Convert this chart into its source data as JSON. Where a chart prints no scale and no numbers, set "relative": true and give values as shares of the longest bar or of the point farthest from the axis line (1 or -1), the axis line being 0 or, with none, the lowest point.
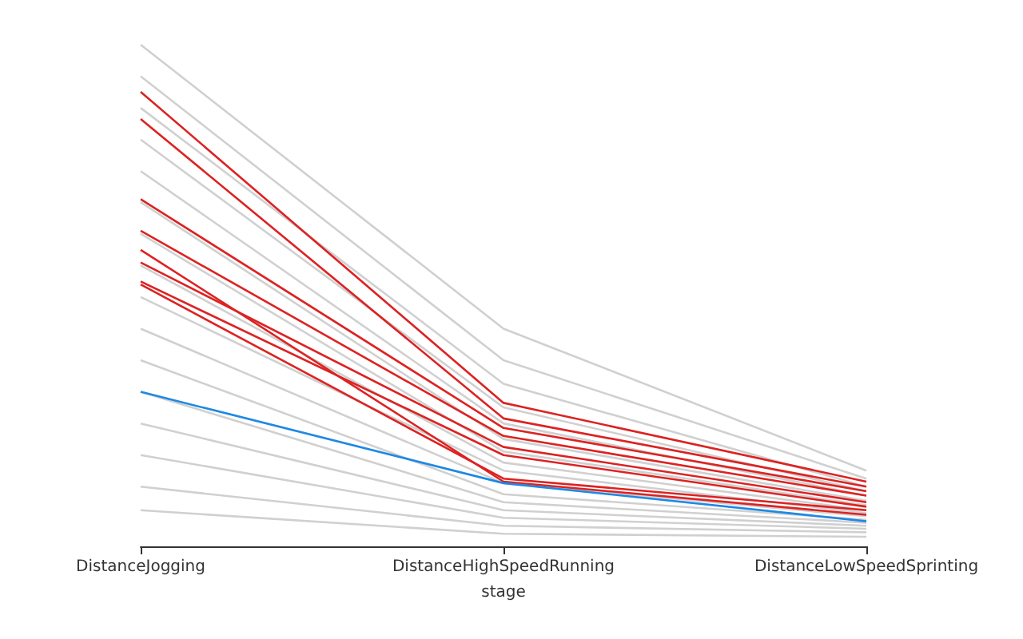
{
  "chart_data": {
    "type": "line",
    "relative": true,
    "xlabel": "stage",
    "categories": [
      "DistanceJogging",
      "DistanceHighSpeedRunning",
      "DistanceLowSpeedSprinting"
    ],
    "marker": "none",
    "series": [
      {
        "color": "#d0d0d0",
        "values": [
          1.0,
          0.434,
          0.151
        ]
      },
      {
        "color": "#d0d0d0",
        "values": [
          0.937,
          0.371,
          0.135
        ]
      },
      {
        "color": "#d0d0d0",
        "values": [
          0.874,
          0.324,
          0.119
        ]
      },
      {
        "color": "#d0d0d0",
        "values": [
          0.811,
          0.277,
          0.11
        ]
      },
      {
        "color": "#d0d0d0",
        "values": [
          0.748,
          0.245,
          0.101
        ]
      },
      {
        "color": "#d0d0d0",
        "values": [
          0.686,
          0.214,
          0.091
        ]
      },
      {
        "color": "#d0d0d0",
        "values": [
          0.623,
          0.189,
          0.082
        ]
      },
      {
        "color": "#d0d0d0",
        "values": [
          0.56,
          0.167,
          0.072
        ]
      },
      {
        "color": "#d0d0d0",
        "values": [
          0.497,
          0.151,
          0.066
        ]
      },
      {
        "color": "#d0d0d0",
        "values": [
          0.434,
          0.126,
          0.06
        ]
      },
      {
        "color": "#d0d0d0",
        "values": [
          0.371,
          0.104,
          0.053
        ]
      },
      {
        "color": "#d0d0d0",
        "values": [
          0.308,
          0.088,
          0.047
        ]
      },
      {
        "color": "#d0d0d0",
        "values": [
          0.245,
          0.072,
          0.041
        ]
      },
      {
        "color": "#d0d0d0",
        "values": [
          0.182,
          0.057,
          0.035
        ]
      },
      {
        "color": "#d0d0d0",
        "values": [
          0.119,
          0.041,
          0.028
        ]
      },
      {
        "color": "#d0d0d0",
        "values": [
          0.072,
          0.025,
          0.019
        ]
      },
      {
        "color": "#dd2222",
        "values": [
          0.906,
          0.286,
          0.129
        ]
      },
      {
        "color": "#dd2222",
        "values": [
          0.852,
          0.255,
          0.119
        ]
      },
      {
        "color": "#dd2222",
        "values": [
          0.692,
          0.236,
          0.11
        ]
      },
      {
        "color": "#dd2222",
        "values": [
          0.629,
          0.22,
          0.101
        ]
      },
      {
        "color": "#dd2222",
        "values": [
          0.566,
          0.198,
          0.088
        ]
      },
      {
        "color": "#dd2222",
        "values": [
          0.528,
          0.182,
          0.079
        ]
      },
      {
        "color": "#dd2222",
        "values": [
          0.522,
          0.135,
          0.072
        ]
      },
      {
        "color": "#dd2222",
        "values": [
          0.591,
          0.129,
          0.063
        ]
      },
      {
        "color": "#1e88e5",
        "values": [
          0.308,
          0.126,
          0.05
        ]
      }
    ]
  }
}
